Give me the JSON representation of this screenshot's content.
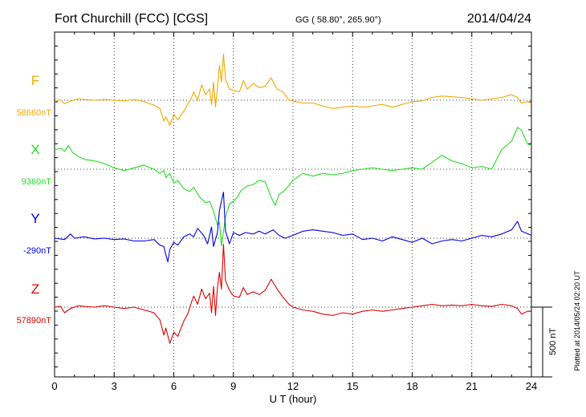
{
  "header": {
    "station": "Fort Churchill (FCC)  [CGS]",
    "coords": "GG ( 58.80°, 265.90°)",
    "date": "2014/04/24"
  },
  "stamp": "Plotted at 2014/05/24 02:20 UT",
  "chart_data": {
    "type": "line",
    "xlabel": "U T (hour)",
    "x_ticks": [
      0,
      3,
      6,
      9,
      12,
      15,
      18,
      21,
      24
    ],
    "xlim": [
      0,
      24
    ],
    "y_unit": "nT",
    "scale_bar": {
      "label": "500 nT",
      "value": 500
    },
    "grid": true,
    "series": [
      {
        "name": "F",
        "baseline_label": "58660nT",
        "color": "#f0a800",
        "points": [
          [
            0,
            -10
          ],
          [
            0.3,
            5
          ],
          [
            0.5,
            -25
          ],
          [
            0.8,
            -5
          ],
          [
            1.2,
            10
          ],
          [
            1.5,
            5
          ],
          [
            2,
            0
          ],
          [
            2.5,
            5
          ],
          [
            3,
            0
          ],
          [
            3.5,
            -5
          ],
          [
            4,
            5
          ],
          [
            4.5,
            -10
          ],
          [
            5,
            -35
          ],
          [
            5.3,
            -60
          ],
          [
            5.5,
            -150
          ],
          [
            5.6,
            -120
          ],
          [
            5.8,
            -180
          ],
          [
            6,
            -100
          ],
          [
            6.2,
            -140
          ],
          [
            6.5,
            -80
          ],
          [
            6.7,
            -30
          ],
          [
            6.9,
            20
          ],
          [
            7,
            60
          ],
          [
            7.2,
            0
          ],
          [
            7.4,
            110
          ],
          [
            7.6,
            40
          ],
          [
            7.8,
            80
          ],
          [
            7.9,
            -30
          ],
          [
            8,
            130
          ],
          [
            8.1,
            -50
          ],
          [
            8.2,
            90
          ],
          [
            8.3,
            250
          ],
          [
            8.4,
            130
          ],
          [
            8.5,
            330
          ],
          [
            8.6,
            150
          ],
          [
            8.8,
            80
          ],
          [
            9,
            70
          ],
          [
            9.3,
            60
          ],
          [
            9.5,
            140
          ],
          [
            9.7,
            80
          ],
          [
            10,
            120
          ],
          [
            10.3,
            90
          ],
          [
            10.6,
            100
          ],
          [
            10.9,
            160
          ],
          [
            11.2,
            80
          ],
          [
            11.5,
            60
          ],
          [
            11.8,
            0
          ],
          [
            12,
            -5
          ],
          [
            12.5,
            -20
          ],
          [
            13,
            -20
          ],
          [
            13.5,
            -40
          ],
          [
            14,
            -60
          ],
          [
            14.5,
            -50
          ],
          [
            15,
            -40
          ],
          [
            15.5,
            -50
          ],
          [
            16,
            -40
          ],
          [
            16.5,
            -30
          ],
          [
            17,
            -50
          ],
          [
            17.5,
            -30
          ],
          [
            18,
            -10
          ],
          [
            18.5,
            -5
          ],
          [
            19,
            20
          ],
          [
            19.5,
            30
          ],
          [
            20,
            25
          ],
          [
            20.5,
            20
          ],
          [
            21,
            10
          ],
          [
            21.5,
            0
          ],
          [
            22,
            10
          ],
          [
            22.5,
            20
          ],
          [
            23,
            40
          ],
          [
            23.3,
            20
          ],
          [
            23.5,
            -20
          ],
          [
            23.8,
            -10
          ],
          [
            24,
            -20
          ]
        ]
      },
      {
        "name": "X",
        "baseline_label": "9360nT",
        "color": "#22dd22",
        "points": [
          [
            0,
            140
          ],
          [
            0.3,
            150
          ],
          [
            0.5,
            130
          ],
          [
            0.7,
            170
          ],
          [
            0.9,
            120
          ],
          [
            1.2,
            90
          ],
          [
            1.5,
            70
          ],
          [
            2,
            60
          ],
          [
            2.5,
            40
          ],
          [
            3,
            10
          ],
          [
            3.5,
            -10
          ],
          [
            4,
            10
          ],
          [
            4.5,
            30
          ],
          [
            4.8,
            10
          ],
          [
            5,
            0
          ],
          [
            5.3,
            -30
          ],
          [
            5.5,
            -10
          ],
          [
            5.6,
            -60
          ],
          [
            5.8,
            -30
          ],
          [
            6,
            -100
          ],
          [
            6.2,
            -80
          ],
          [
            6.5,
            -140
          ],
          [
            6.8,
            -160
          ],
          [
            7,
            -130
          ],
          [
            7.3,
            -200
          ],
          [
            7.6,
            -240
          ],
          [
            7.8,
            -230
          ],
          [
            8,
            -300
          ],
          [
            8.2,
            -400
          ],
          [
            8.3,
            -380
          ],
          [
            8.4,
            -550
          ],
          [
            8.6,
            -340
          ],
          [
            8.8,
            -250
          ],
          [
            9,
            -230
          ],
          [
            9.2,
            -200
          ],
          [
            9.4,
            -150
          ],
          [
            9.7,
            -120
          ],
          [
            10,
            -110
          ],
          [
            10.3,
            -80
          ],
          [
            10.6,
            -90
          ],
          [
            10.9,
            -200
          ],
          [
            11.1,
            -260
          ],
          [
            11.3,
            -180
          ],
          [
            11.6,
            -150
          ],
          [
            12,
            -80
          ],
          [
            12.5,
            -30
          ],
          [
            13,
            -50
          ],
          [
            13.5,
            -30
          ],
          [
            14,
            -40
          ],
          [
            14.5,
            -30
          ],
          [
            15,
            -10
          ],
          [
            15.5,
            0
          ],
          [
            16,
            10
          ],
          [
            16.5,
            0
          ],
          [
            17,
            -10
          ],
          [
            17.5,
            0
          ],
          [
            18,
            10
          ],
          [
            18.5,
            0
          ],
          [
            19,
            50
          ],
          [
            19.5,
            100
          ],
          [
            20,
            60
          ],
          [
            20.5,
            40
          ],
          [
            21,
            10
          ],
          [
            21.5,
            20
          ],
          [
            22,
            0
          ],
          [
            22.5,
            140
          ],
          [
            23,
            200
          ],
          [
            23.3,
            300
          ],
          [
            23.5,
            280
          ],
          [
            23.8,
            180
          ],
          [
            24,
            170
          ]
        ]
      },
      {
        "name": "Y",
        "baseline_label": "-290nT",
        "color": "#0000e0",
        "points": [
          [
            0,
            0
          ],
          [
            0.5,
            -10
          ],
          [
            0.8,
            30
          ],
          [
            1,
            0
          ],
          [
            1.5,
            10
          ],
          [
            2,
            -5
          ],
          [
            2.5,
            0
          ],
          [
            3,
            -10
          ],
          [
            3.5,
            -5
          ],
          [
            4,
            -20
          ],
          [
            4.5,
            -20
          ],
          [
            5,
            -10
          ],
          [
            5.3,
            -50
          ],
          [
            5.5,
            -60
          ],
          [
            5.6,
            -120
          ],
          [
            5.7,
            -170
          ],
          [
            5.8,
            -80
          ],
          [
            6,
            -30
          ],
          [
            6.2,
            -50
          ],
          [
            6.5,
            10
          ],
          [
            6.8,
            30
          ],
          [
            7,
            10
          ],
          [
            7.2,
            70
          ],
          [
            7.5,
            20
          ],
          [
            7.7,
            -40
          ],
          [
            7.9,
            80
          ],
          [
            8,
            -60
          ],
          [
            8.2,
            40
          ],
          [
            8.3,
            200
          ],
          [
            8.5,
            330
          ],
          [
            8.6,
            50
          ],
          [
            8.8,
            -40
          ],
          [
            9,
            40
          ],
          [
            9.3,
            20
          ],
          [
            9.6,
            40
          ],
          [
            10,
            30
          ],
          [
            10.3,
            50
          ],
          [
            10.6,
            30
          ],
          [
            11,
            60
          ],
          [
            11.3,
            20
          ],
          [
            11.6,
            0
          ],
          [
            12,
            20
          ],
          [
            12.5,
            50
          ],
          [
            13,
            60
          ],
          [
            13.5,
            50
          ],
          [
            14,
            40
          ],
          [
            14.5,
            20
          ],
          [
            15,
            30
          ],
          [
            15.5,
            -10
          ],
          [
            16,
            0
          ],
          [
            16.5,
            -20
          ],
          [
            17,
            10
          ],
          [
            17.5,
            -10
          ],
          [
            18,
            -30
          ],
          [
            18.5,
            0
          ],
          [
            19,
            -40
          ],
          [
            19.5,
            -20
          ],
          [
            20,
            -10
          ],
          [
            20.5,
            -20
          ],
          [
            21,
            0
          ],
          [
            21.5,
            20
          ],
          [
            22,
            10
          ],
          [
            22.5,
            30
          ],
          [
            23,
            60
          ],
          [
            23.3,
            120
          ],
          [
            23.5,
            50
          ],
          [
            24,
            20
          ]
        ]
      },
      {
        "name": "Z",
        "baseline_label": "57890nT",
        "color": "#e00000",
        "points": [
          [
            0,
            0
          ],
          [
            0.3,
            5
          ],
          [
            0.5,
            -40
          ],
          [
            0.8,
            -10
          ],
          [
            1.2,
            10
          ],
          [
            1.5,
            5
          ],
          [
            2,
            0
          ],
          [
            2.5,
            10
          ],
          [
            3,
            0
          ],
          [
            3.5,
            -10
          ],
          [
            4,
            0
          ],
          [
            4.5,
            -20
          ],
          [
            5,
            -40
          ],
          [
            5.3,
            -90
          ],
          [
            5.5,
            -200
          ],
          [
            5.6,
            -150
          ],
          [
            5.8,
            -260
          ],
          [
            6,
            -180
          ],
          [
            6.2,
            -210
          ],
          [
            6.5,
            -100
          ],
          [
            6.7,
            -50
          ],
          [
            6.9,
            40
          ],
          [
            7,
            80
          ],
          [
            7.2,
            20
          ],
          [
            7.4,
            130
          ],
          [
            7.6,
            60
          ],
          [
            7.8,
            100
          ],
          [
            7.9,
            -40
          ],
          [
            8,
            150
          ],
          [
            8.1,
            -60
          ],
          [
            8.2,
            140
          ],
          [
            8.3,
            250
          ],
          [
            8.4,
            130
          ],
          [
            8.5,
            450
          ],
          [
            8.6,
            190
          ],
          [
            8.8,
            120
          ],
          [
            9,
            80
          ],
          [
            9.3,
            70
          ],
          [
            9.5,
            140
          ],
          [
            9.7,
            90
          ],
          [
            10,
            110
          ],
          [
            10.3,
            90
          ],
          [
            10.6,
            120
          ],
          [
            10.9,
            200
          ],
          [
            11.2,
            130
          ],
          [
            11.5,
            70
          ],
          [
            11.8,
            20
          ],
          [
            12,
            0
          ],
          [
            12.5,
            -20
          ],
          [
            13,
            -30
          ],
          [
            13.5,
            -50
          ],
          [
            14,
            -60
          ],
          [
            14.5,
            -40
          ],
          [
            15,
            -50
          ],
          [
            15.5,
            -30
          ],
          [
            16,
            -20
          ],
          [
            16.5,
            -30
          ],
          [
            17,
            -20
          ],
          [
            17.5,
            -10
          ],
          [
            18,
            0
          ],
          [
            18.5,
            10
          ],
          [
            19,
            20
          ],
          [
            19.5,
            10
          ],
          [
            20,
            15
          ],
          [
            20.5,
            10
          ],
          [
            21,
            20
          ],
          [
            21.5,
            10
          ],
          [
            22,
            5
          ],
          [
            22.5,
            20
          ],
          [
            23,
            10
          ],
          [
            23.3,
            -10
          ],
          [
            23.5,
            -50
          ],
          [
            23.8,
            -30
          ],
          [
            24,
            -30
          ]
        ]
      }
    ]
  }
}
